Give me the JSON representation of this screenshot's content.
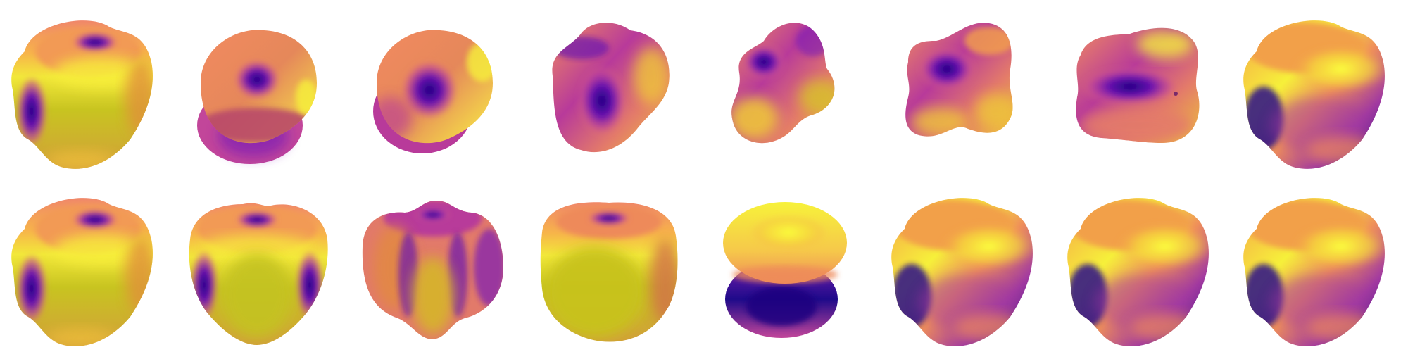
{
  "palette": {
    "dark": "#1a0080",
    "purple": "#7b1fb5",
    "magenta": "#b83a9a",
    "salmon": "#e87862",
    "orange": "#f4a24a",
    "yellow": "#f6f23a",
    "olive": "#c2c21f",
    "background": "#ffffff"
  },
  "grid": {
    "rows": 2,
    "columns": 8
  },
  "shapes": [
    {
      "id": "r1c1",
      "style": "cube-olive"
    },
    {
      "id": "r1c2",
      "style": "orb-stack"
    },
    {
      "id": "r1c3",
      "style": "orb-round"
    },
    {
      "id": "r1c4",
      "style": "orb-tilted"
    },
    {
      "id": "r1c5",
      "style": "blob-pinched"
    },
    {
      "id": "r1c6",
      "style": "blob-flat"
    },
    {
      "id": "r1c7",
      "style": "blob-cushion"
    },
    {
      "id": "r1c8",
      "style": "cube-yellow"
    },
    {
      "id": "r2c1",
      "style": "cube-olive"
    },
    {
      "id": "r2c2",
      "style": "cube-front"
    },
    {
      "id": "r2c3",
      "style": "cube-lobed"
    },
    {
      "id": "r2c4",
      "style": "cube-pot"
    },
    {
      "id": "r2c5",
      "style": "stack-yellow-dark"
    },
    {
      "id": "r2c6",
      "style": "cube-yellow"
    },
    {
      "id": "r2c7",
      "style": "cube-yellow"
    },
    {
      "id": "r2c8",
      "style": "cube-yellow"
    }
  ]
}
